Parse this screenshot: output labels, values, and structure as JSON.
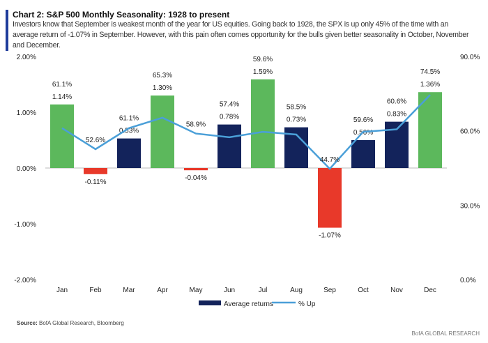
{
  "header": {
    "title": "Chart 2: S&P 500 Monthly Seasonality: 1928 to present",
    "subtitle": "Investors know that September is weakest month of the year for US equities. Going back to 1928, the SPX is up only 45% of the time with an average return of -1.07% in September. However, with this pain often comes opportunity for the bulls given better seasonality in October, November and December."
  },
  "footer": {
    "source_label": "Source:",
    "source": " BofA Global Research, Bloomberg",
    "brand": "BofA GLOBAL RESEARCH"
  },
  "chart_data": {
    "type": "bar+line",
    "categories": [
      "Jan",
      "Feb",
      "Mar",
      "Apr",
      "May",
      "Jun",
      "Jul",
      "Aug",
      "Sep",
      "Oct",
      "Nov",
      "Dec"
    ],
    "series": [
      {
        "name": "Average returns",
        "type": "bar",
        "axis": "left",
        "values": [
          1.14,
          -0.11,
          0.53,
          1.3,
          -0.04,
          0.78,
          1.59,
          0.73,
          -1.07,
          0.5,
          0.83,
          1.36
        ],
        "labels": [
          "1.14%",
          "-0.11%",
          "0.53%",
          "1.30%",
          "-0.04%",
          "0.78%",
          "1.59%",
          "0.73%",
          "-1.07%",
          "0.50%",
          "0.83%",
          "1.36%"
        ]
      },
      {
        "name": "% Up",
        "type": "line",
        "axis": "right",
        "values": [
          61.1,
          52.6,
          61.1,
          65.3,
          58.9,
          57.4,
          59.6,
          58.5,
          44.7,
          59.6,
          60.6,
          74.5
        ],
        "labels": [
          "61.1%",
          "52.6%",
          "61.1%",
          "65.3%",
          "58.9%",
          "57.4%",
          "59.6%",
          "58.5%",
          "44.7%",
          "59.6%",
          "60.6%",
          "74.5%"
        ]
      }
    ],
    "left_axis": {
      "range": [
        -2,
        2
      ],
      "ticks": [
        "-2.00%",
        "-1.00%",
        "0.00%",
        "1.00%",
        "2.00%"
      ]
    },
    "right_axis": {
      "range": [
        0,
        90
      ],
      "ticks": [
        "0.0%",
        "30.0%",
        "60.0%",
        "90.0%"
      ]
    },
    "highlighted_months": [
      "Jan",
      "Apr",
      "Jul",
      "Dec"
    ],
    "colors": {
      "bar": "#13235b",
      "bar_top": "#5cb85c",
      "bar_negative": "#e8392a",
      "line": "#4a9fd8"
    },
    "legend": {
      "position": "bottom"
    },
    "grid": false
  }
}
